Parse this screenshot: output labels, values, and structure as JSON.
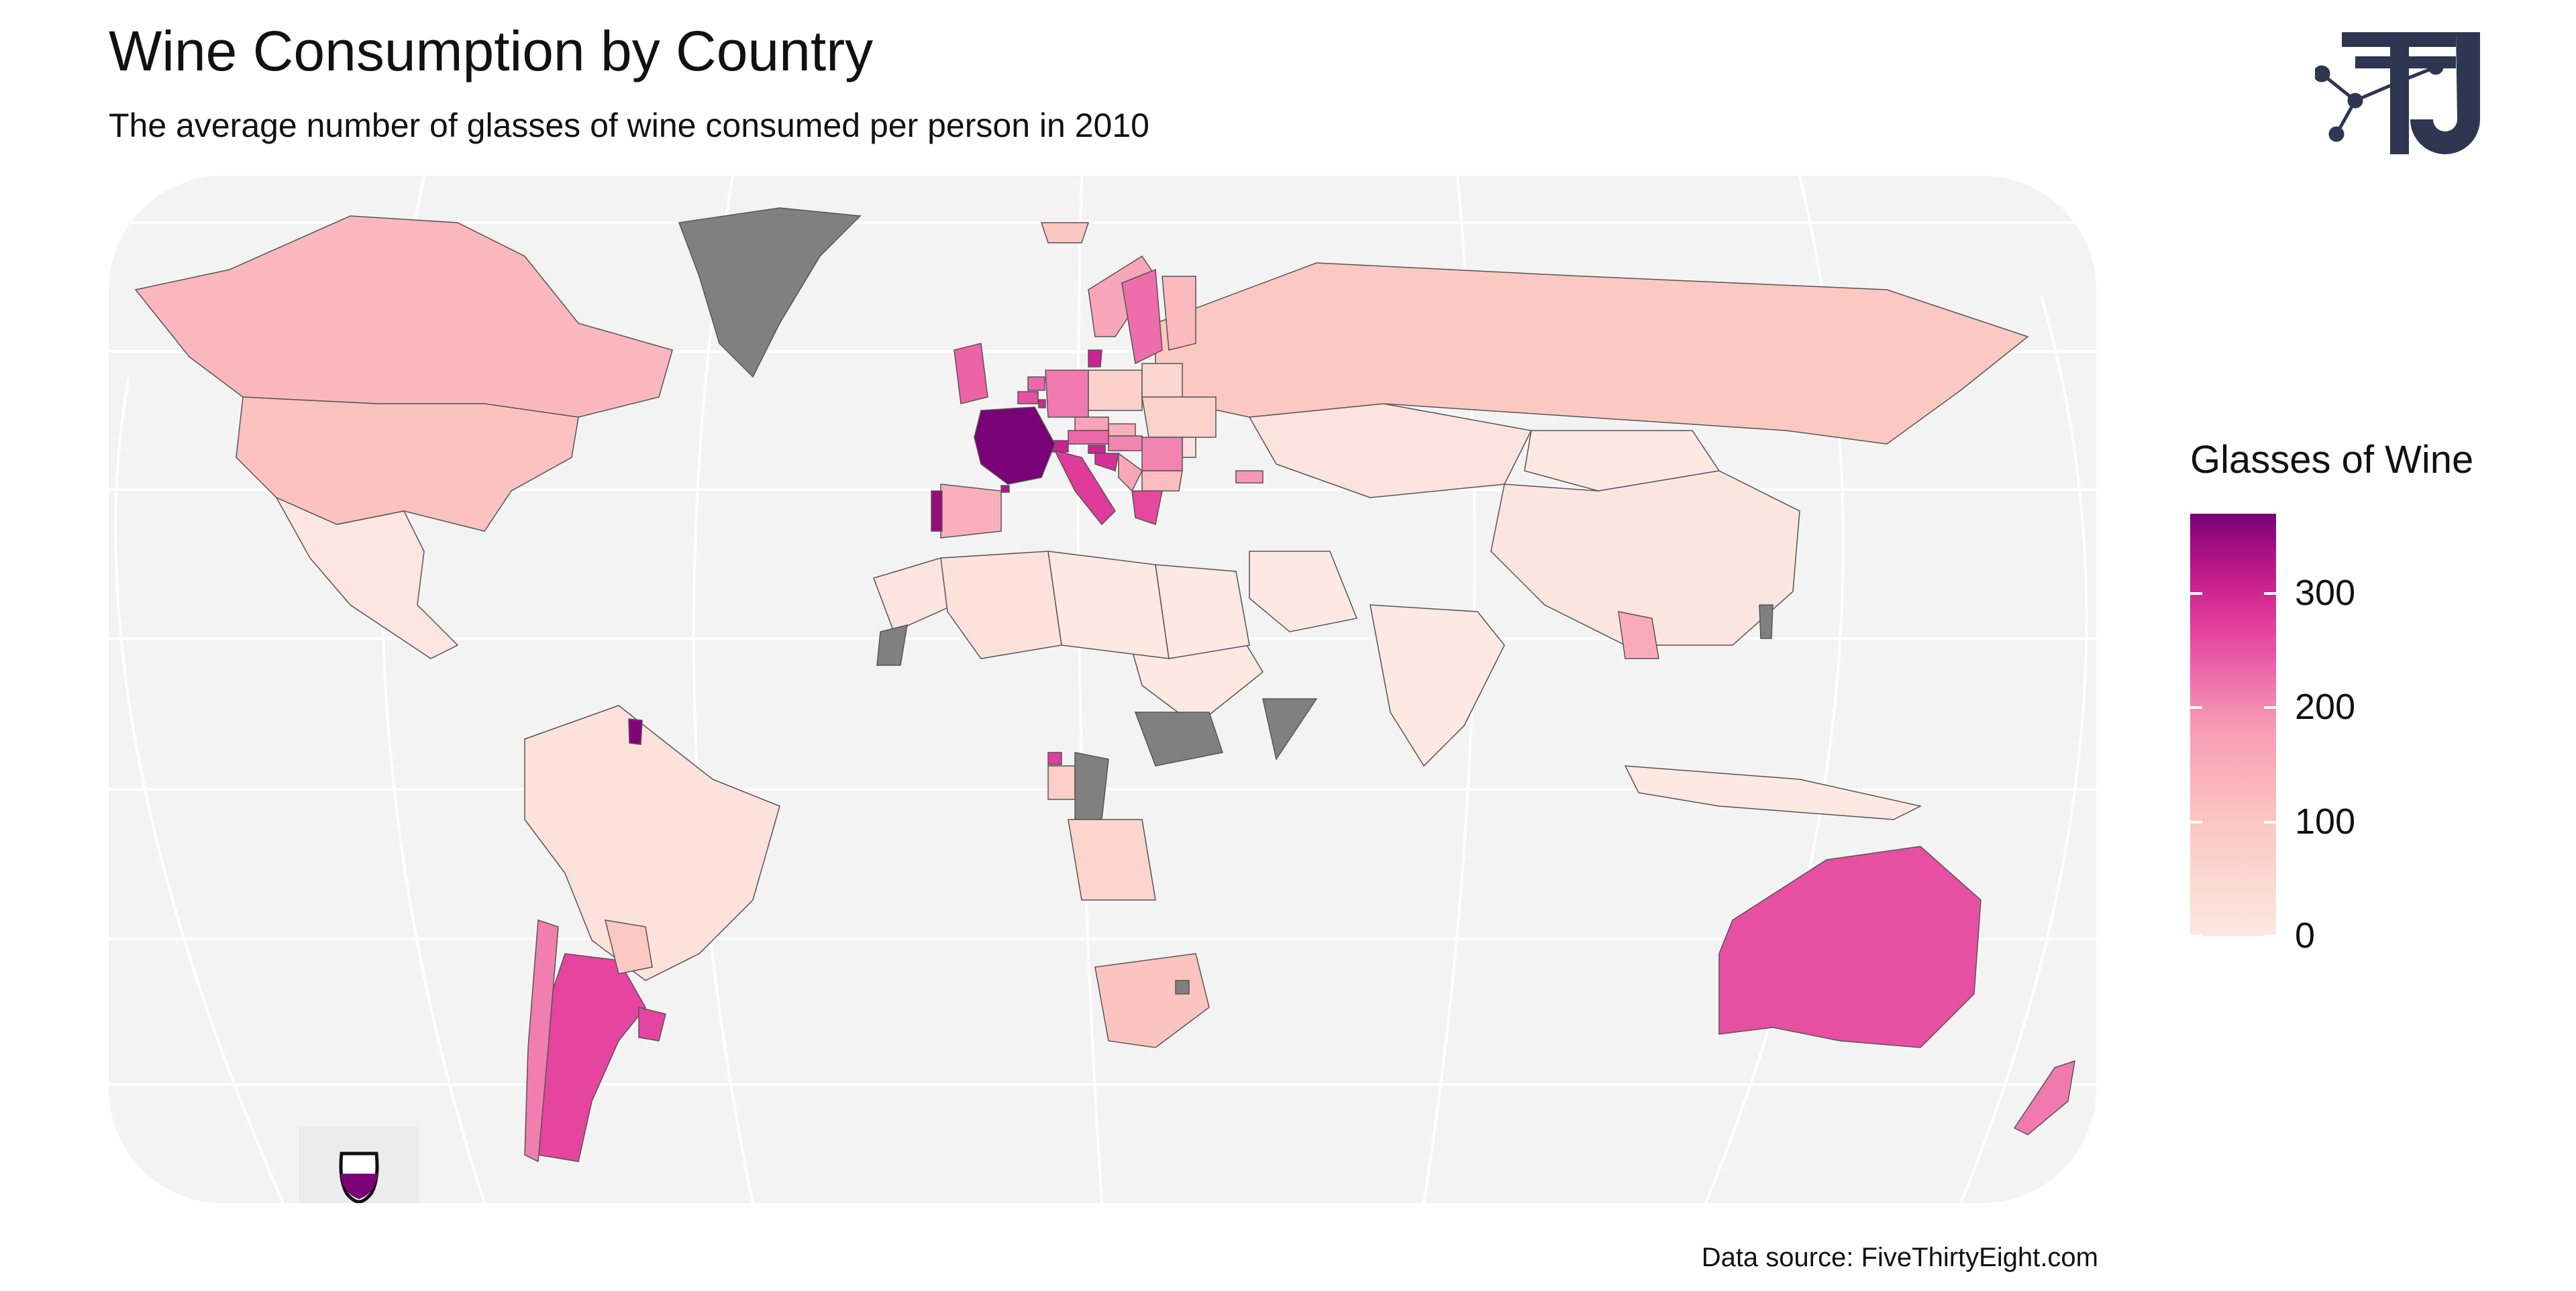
{
  "title": "Wine Consumption by Country",
  "subtitle": "The average number of glasses of wine consumed per person in 2010",
  "source": "Data source: FiveThirtyEight.com",
  "legend": {
    "title": "Glasses of Wine",
    "ticks": [
      "300",
      "200",
      "100",
      "0"
    ],
    "tick_values": [
      300,
      200,
      100,
      0
    ],
    "range": [
      0,
      370
    ],
    "colors": [
      "#fde8e2",
      "#fcc8c2",
      "#f79ab6",
      "#e5439f",
      "#c01a8a",
      "#7a0177"
    ]
  },
  "no_data_color": "#808080",
  "icons": {
    "logo": "tj-logo",
    "inset": "wine-glass-icon"
  },
  "map_data": {
    "metric": "Glasses of Wine",
    "countries": [
      {
        "name": "France",
        "value": 370
      },
      {
        "name": "Portugal",
        "value": 339
      },
      {
        "name": "Andorra",
        "value": 312
      },
      {
        "name": "Switzerland",
        "value": 280
      },
      {
        "name": "Denmark",
        "value": 278
      },
      {
        "name": "Slovenia",
        "value": 276
      },
      {
        "name": "Luxembourg",
        "value": 271
      },
      {
        "name": "Croatia",
        "value": 254
      },
      {
        "name": "Italy",
        "value": 237
      },
      {
        "name": "Equatorial Guinea",
        "value": 233
      },
      {
        "name": "Argentina",
        "value": 221
      },
      {
        "name": "Greece",
        "value": 218
      },
      {
        "name": "Uruguay",
        "value": 220
      },
      {
        "name": "Australia",
        "value": 212
      },
      {
        "name": "Belgium",
        "value": 212
      },
      {
        "name": "Germany",
        "value": 175
      },
      {
        "name": "Netherlands",
        "value": 190
      },
      {
        "name": "Austria",
        "value": 191
      },
      {
        "name": "Sweden",
        "value": 186
      },
      {
        "name": "United Kingdom",
        "value": 195
      },
      {
        "name": "Hungary",
        "value": 167
      },
      {
        "name": "Romania",
        "value": 167
      },
      {
        "name": "Serbia",
        "value": 127
      },
      {
        "name": "Chile",
        "value": 172
      },
      {
        "name": "Bulgaria",
        "value": 94
      },
      {
        "name": "Spain",
        "value": 112
      },
      {
        "name": "New Zealand",
        "value": 175
      },
      {
        "name": "Norway",
        "value": 129
      },
      {
        "name": "Finland",
        "value": 97
      },
      {
        "name": "Iceland",
        "value": 78
      },
      {
        "name": "Czech Republic",
        "value": 134
      },
      {
        "name": "Slovakia",
        "value": 116
      },
      {
        "name": "Poland",
        "value": 56
      },
      {
        "name": "Belarus",
        "value": 42
      },
      {
        "name": "Ukraine",
        "value": 51
      },
      {
        "name": "Moldova",
        "value": 18
      },
      {
        "name": "Georgia",
        "value": 149
      },
      {
        "name": "Laos",
        "value": 123
      },
      {
        "name": "Canada",
        "value": 100
      },
      {
        "name": "USA",
        "value": 84
      },
      {
        "name": "Russia",
        "value": 73
      },
      {
        "name": "South Africa",
        "value": 81
      },
      {
        "name": "Angola",
        "value": 45
      },
      {
        "name": "Paraguay",
        "value": 74
      },
      {
        "name": "Gabon",
        "value": 59
      },
      {
        "name": "China",
        "value": 8
      },
      {
        "name": "Brazil",
        "value": 16
      },
      {
        "name": "Mexico",
        "value": 5
      },
      {
        "name": "India",
        "value": 0
      },
      {
        "name": "Kazakhstan",
        "value": 12
      },
      {
        "name": "Mongolia",
        "value": 1
      },
      {
        "name": "Algeria",
        "value": 14
      },
      {
        "name": "Morocco",
        "value": 10
      },
      {
        "name": "Libya",
        "value": 0
      },
      {
        "name": "Egypt",
        "value": 1
      },
      {
        "name": "Iran",
        "value": 0
      },
      {
        "name": "Saudi Arabia",
        "value": 0
      },
      {
        "name": "Indonesia",
        "value": 0
      },
      {
        "name": "Greenland",
        "value": null
      },
      {
        "name": "South Sudan",
        "value": null
      },
      {
        "name": "Somalia",
        "value": null
      },
      {
        "name": "Republic of the Congo",
        "value": null
      },
      {
        "name": "Western Sahara",
        "value": null
      },
      {
        "name": "Taiwan",
        "value": null
      },
      {
        "name": "Lesotho",
        "value": null
      },
      {
        "name": "French Guiana",
        "value": 360
      }
    ]
  }
}
